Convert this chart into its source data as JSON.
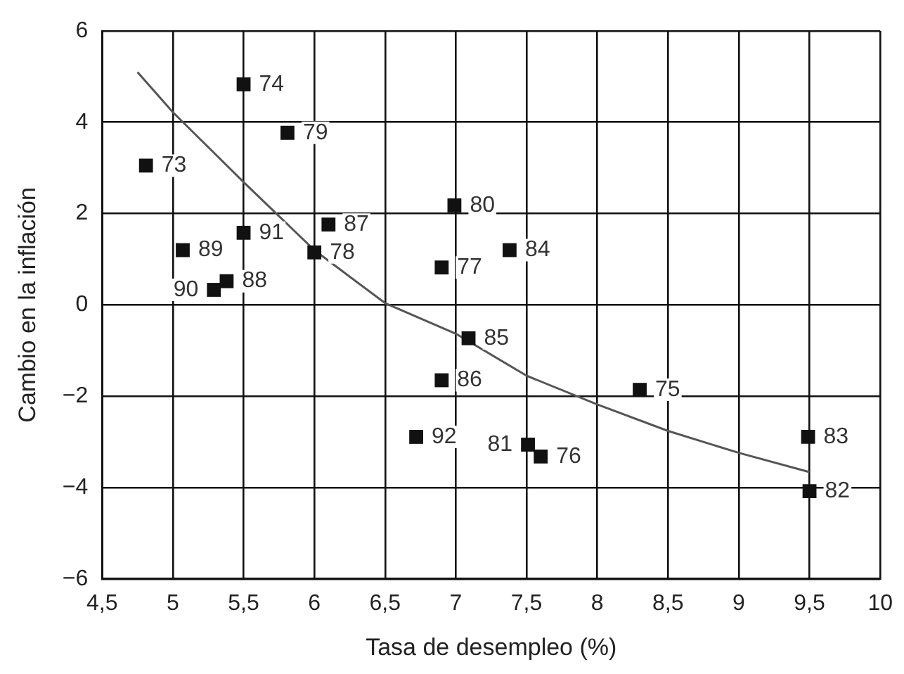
{
  "chart_data": {
    "type": "scatter",
    "xlabel": "Tasa de desempleo (%)",
    "ylabel": "Cambio en la inflación",
    "xlim": [
      4.5,
      10
    ],
    "xticks": [
      {
        "value": 4.5,
        "label": "4,5"
      },
      5,
      {
        "value": 5.5,
        "label": "5,5"
      },
      6,
      {
        "value": 6.5,
        "label": "6,5"
      },
      7,
      {
        "value": 7.5,
        "label": "7,5"
      },
      8,
      {
        "value": 8.5,
        "label": "8,5"
      },
      9,
      {
        "value": 9.5,
        "label": "9,5"
      },
      10
    ],
    "ylim": [
      -6,
      6
    ],
    "yticks": [
      {
        "value": -6,
        "label": "−6"
      },
      {
        "value": -4,
        "label": "−4"
      },
      {
        "value": -2,
        "label": "−2"
      },
      0,
      2,
      4,
      6
    ],
    "grid": true,
    "legend": false,
    "marker": "square",
    "series": [
      {
        "color": "#111111",
        "x": [
          4.81,
          5.5,
          5.81,
          5.5,
          5.07,
          5.38,
          5.29,
          6.1,
          6.0,
          6.99,
          6.9,
          7.38,
          7.09,
          6.9,
          8.3,
          6.72,
          7.51,
          7.6,
          9.49,
          9.5
        ],
        "values": [
          3.05,
          4.83,
          3.77,
          1.58,
          1.2,
          0.52,
          0.33,
          1.76,
          1.15,
          2.18,
          0.82,
          1.2,
          -0.73,
          -1.65,
          -1.86,
          -2.89,
          -3.06,
          -3.32,
          -2.89,
          -4.08
        ]
      },
      {
        "type": "line",
        "color": "#555555",
        "marker": "none",
        "x": [
          4.75,
          5.0,
          5.5,
          6.0,
          6.5,
          7.0,
          7.5,
          8.0,
          8.5,
          9.0,
          9.5
        ],
        "values": [
          5.1,
          4.22,
          2.69,
          1.2,
          0.04,
          -0.63,
          -1.55,
          -2.18,
          -2.76,
          -3.24,
          -3.66
        ]
      }
    ],
    "annotations": [
      {
        "text": "73",
        "x": 4.81,
        "y": 3.05
      },
      {
        "text": "74",
        "x": 5.5,
        "y": 4.83
      },
      {
        "text": "79",
        "x": 5.81,
        "y": 3.77
      },
      {
        "text": "91",
        "x": 5.5,
        "y": 1.58
      },
      {
        "text": "89",
        "x": 5.07,
        "y": 1.2
      },
      {
        "text": "88",
        "x": 5.38,
        "y": 0.52
      },
      {
        "text": "90",
        "x": 5.29,
        "y": 0.33
      },
      {
        "text": "87",
        "x": 6.1,
        "y": 1.76
      },
      {
        "text": "78",
        "x": 6.0,
        "y": 1.15
      },
      {
        "text": "80",
        "x": 6.99,
        "y": 2.18
      },
      {
        "text": "77",
        "x": 6.9,
        "y": 0.82
      },
      {
        "text": "84",
        "x": 7.38,
        "y": 1.2
      },
      {
        "text": "85",
        "x": 7.09,
        "y": -0.73
      },
      {
        "text": "86",
        "x": 6.9,
        "y": -1.65
      },
      {
        "text": "75",
        "x": 8.3,
        "y": -1.86
      },
      {
        "text": "92",
        "x": 6.72,
        "y": -2.89
      },
      {
        "text": "81",
        "x": 7.51,
        "y": -3.06
      },
      {
        "text": "76",
        "x": 7.6,
        "y": -3.32
      },
      {
        "text": "83",
        "x": 9.49,
        "y": -2.89
      },
      {
        "text": "82",
        "x": 9.5,
        "y": -4.08
      }
    ]
  }
}
